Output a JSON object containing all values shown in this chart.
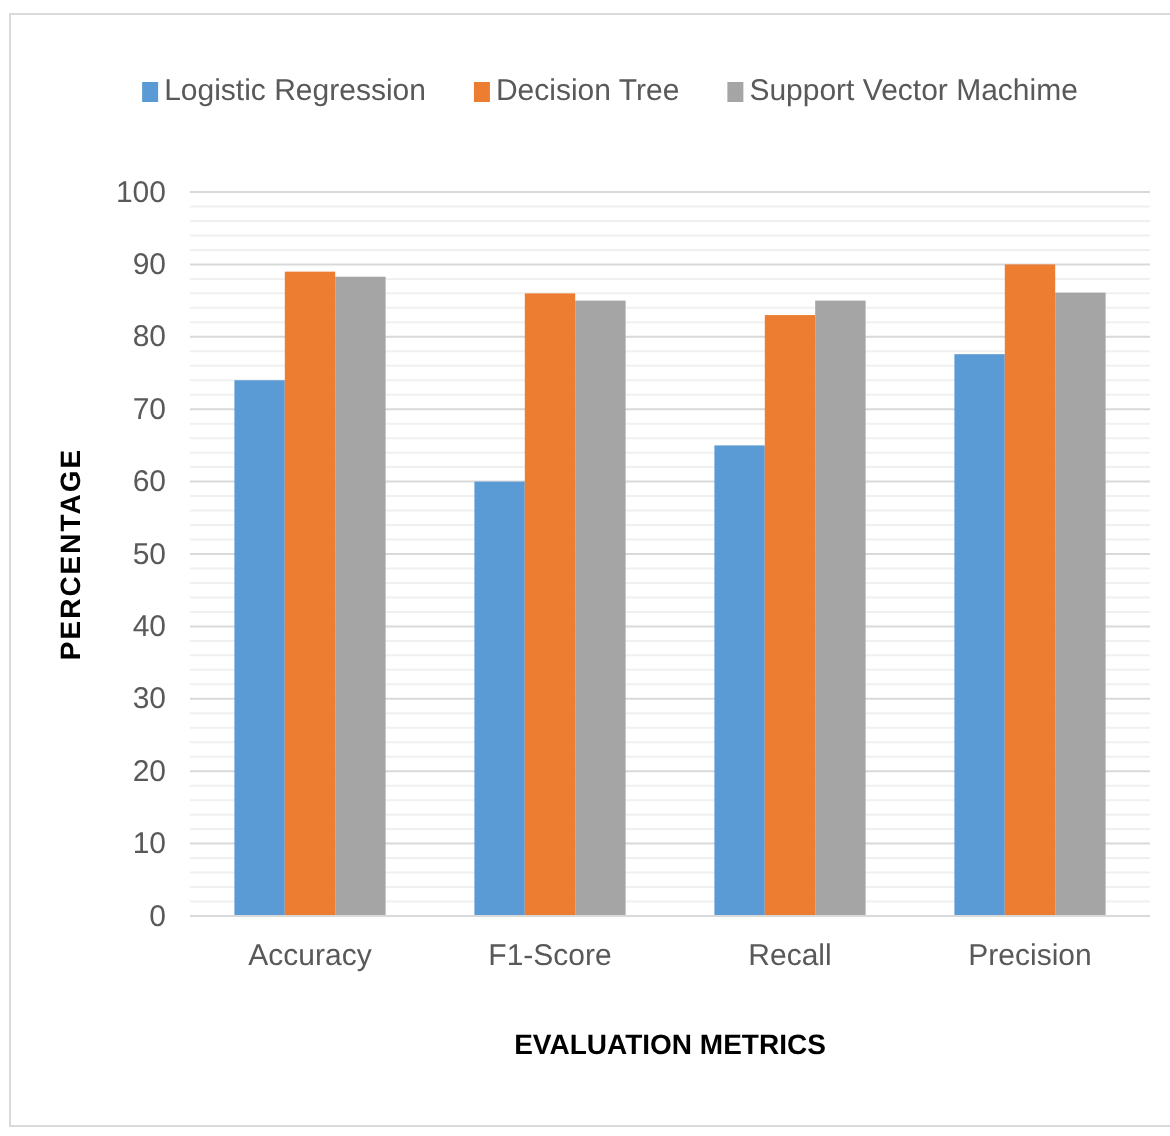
{
  "chart_data": {
    "type": "bar",
    "xlabel": "EVALUATION METRICS",
    "ylabel": "PERCENTAGE",
    "categories": [
      "Accuracy",
      "F1-Score",
      "Recall",
      "Precision"
    ],
    "series": [
      {
        "name": "Logistic Regression",
        "color": "#5b9bd5",
        "values": [
          74,
          60,
          65,
          77.6
        ]
      },
      {
        "name": "Decision Tree",
        "color": "#ed7d31",
        "values": [
          89,
          86,
          83,
          90
        ]
      },
      {
        "name": "Support Vector Machime",
        "color": "#a5a5a5",
        "values": [
          88.3,
          85,
          85,
          86.1
        ]
      }
    ],
    "ylim": [
      0,
      100
    ],
    "yticks": [
      0,
      {
        "value": 2,
        "label": null
      },
      {
        "value": 4,
        "label": null
      },
      {
        "value": 6,
        "label": null
      },
      {
        "value": 8,
        "label": null
      },
      10,
      {
        "value": 12,
        "label": null
      },
      {
        "value": 14,
        "label": null
      },
      {
        "value": 16,
        "label": null
      },
      {
        "value": 18,
        "label": null
      },
      20,
      {
        "value": 22,
        "label": null
      },
      {
        "value": 24,
        "label": null
      },
      {
        "value": 26,
        "label": null
      },
      {
        "value": 28,
        "label": null
      },
      30,
      {
        "value": 32,
        "label": null
      },
      {
        "value": 34,
        "label": null
      },
      {
        "value": 36,
        "label": null
      },
      {
        "value": 38,
        "label": null
      },
      40,
      {
        "value": 42,
        "label": null
      },
      {
        "value": 44,
        "label": null
      },
      {
        "value": 46,
        "label": null
      },
      {
        "value": 48,
        "label": null
      },
      50,
      {
        "value": 52,
        "label": null
      },
      {
        "value": 54,
        "label": null
      },
      {
        "value": 56,
        "label": null
      },
      {
        "value": 58,
        "label": null
      },
      60,
      {
        "value": 62,
        "label": null
      },
      {
        "value": 64,
        "label": null
      },
      {
        "value": 66,
        "label": null
      },
      {
        "value": 68,
        "label": null
      },
      70,
      {
        "value": 72,
        "label": null
      },
      {
        "value": 74,
        "label": null
      },
      {
        "value": 76,
        "label": null
      },
      {
        "value": 78,
        "label": null
      },
      80,
      {
        "value": 82,
        "label": null
      },
      {
        "value": 84,
        "label": null
      },
      {
        "value": 86,
        "label": null
      },
      {
        "value": 88,
        "label": null
      },
      90,
      {
        "value": 92,
        "label": null
      },
      {
        "value": 94,
        "label": null
      },
      {
        "value": 96,
        "label": null
      },
      {
        "value": 98,
        "label": null
      },
      100
    ],
    "grid": "y",
    "legend": "top"
  }
}
